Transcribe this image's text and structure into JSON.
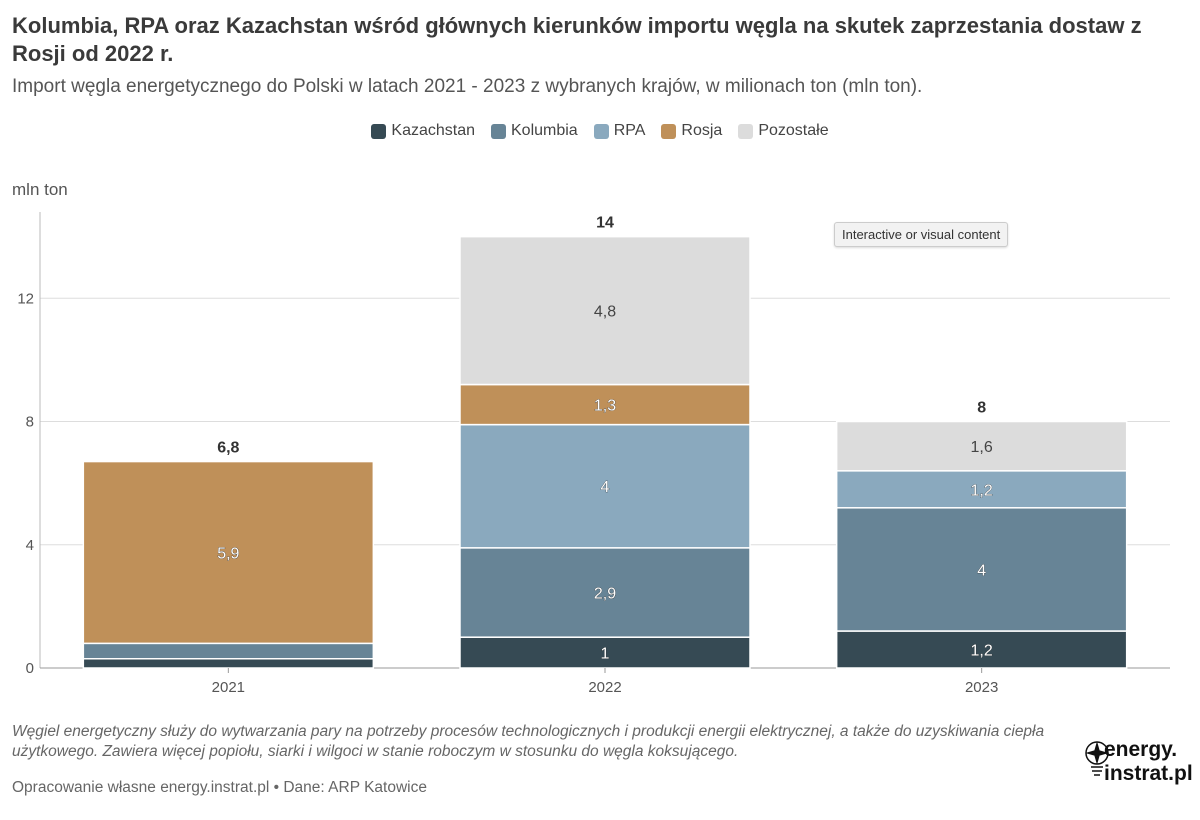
{
  "title": "Kolumbia, RPA oraz Kazachstan wśród głównych kierunków importu węgla na skutek zaprzestania dostaw z Rosji od 2022 r.",
  "subtitle": "Import węgla energetycznego do Polski w latach 2021 - 2023 z wybranych krajów, w milionach ton (mln ton).",
  "unit_label": "mln ton",
  "tooltip": "Interactive or visual content",
  "note": "Węgiel energetyczny służy do wytwarzania pary na potrzeby procesów technologicznych i produkcji energii elektrycznej, a także do uzyskiwania ciepła użytkowego. Zawiera więcej popiołu, siarki i wilgoci w stanie roboczym w stosunku do węgla koksującego.",
  "source": "Opracowanie własne energy.instrat.pl • Dane: ARP Katowice",
  "logo": {
    "line1": "energy.",
    "line2": "instrat.pl"
  },
  "chart_data": {
    "type": "bar",
    "stacked": true,
    "categories": [
      "2021",
      "2022",
      "2023"
    ],
    "series": [
      {
        "name": "Kazachstan",
        "color": "#364a54",
        "values": [
          0.3,
          1,
          1.2
        ],
        "labels": [
          "",
          "1",
          "1,2"
        ]
      },
      {
        "name": "Kolumbia",
        "color": "#678496",
        "values": [
          0.5,
          2.9,
          4
        ],
        "labels": [
          "",
          "2,9",
          "4"
        ]
      },
      {
        "name": "RPA",
        "color": "#8aa9be",
        "values": [
          0,
          4,
          1.2
        ],
        "labels": [
          "",
          "4",
          "1,2"
        ]
      },
      {
        "name": "Rosja",
        "color": "#bf9059",
        "values": [
          5.9,
          1.3,
          0
        ],
        "labels": [
          "5,9",
          "1,3",
          ""
        ]
      },
      {
        "name": "Pozostałe",
        "color": "#dcdcdc",
        "values": [
          0,
          4.8,
          1.6
        ],
        "labels": [
          "",
          "4,8",
          "1,6"
        ]
      }
    ],
    "totals": [
      "6,8",
      "14",
      "8"
    ],
    "ylim": [
      0,
      14.8
    ],
    "yticks": [
      0,
      4,
      8,
      12
    ],
    "grid": true,
    "legend_position": "top-center",
    "ylabel": "mln ton"
  }
}
